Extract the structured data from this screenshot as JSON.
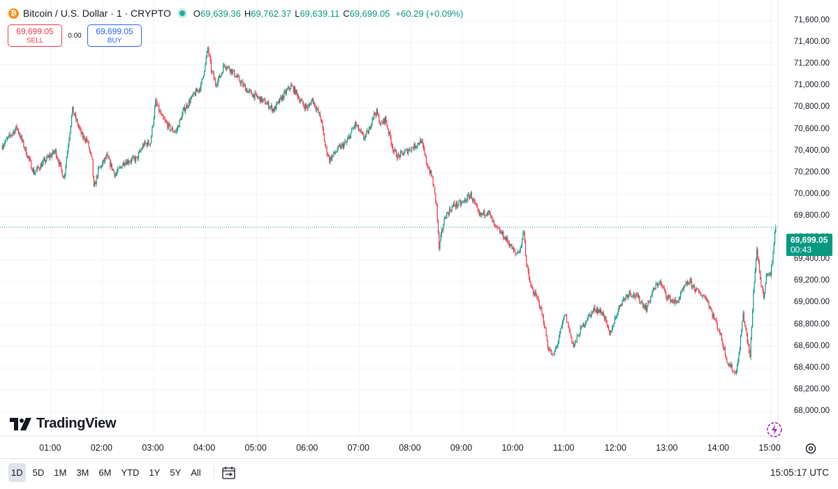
{
  "legend": {
    "symbol_title": "Bitcoin / U.S. Dollar · 1 · CRYPTO",
    "coin_icon": "bitcoin-icon",
    "open_key": "O",
    "open": "69,639.36",
    "high_key": "H",
    "high": "69,762.37",
    "low_key": "L",
    "low": "69,639.11",
    "close_key": "C",
    "close": "69,699.05",
    "change": "+60.29 (+0.09%)"
  },
  "trade": {
    "sell_price": "69,699.05",
    "sell_label": "SELL",
    "spread": "0.00",
    "buy_price": "69,699.05",
    "buy_label": "BUY"
  },
  "brand": "TradingView",
  "last_price": {
    "value": "69,699.05",
    "countdown": "00:43"
  },
  "ranges": [
    "1D",
    "5D",
    "1M",
    "3M",
    "6M",
    "YTD",
    "1Y",
    "5Y",
    "All"
  ],
  "active_range": "1D",
  "clock": "15:05:17 UTC",
  "colors": {
    "up": "#089981",
    "down": "#f23645",
    "accent": "#2962ff",
    "brand_coin": "#f7931a"
  },
  "chart_data": {
    "type": "candlestick",
    "y_tick_labels": [
      "71,600.00",
      "71,400.00",
      "71,200.00",
      "71,000.00",
      "70,800.00",
      "70,600.00",
      "70,400.00",
      "70,200.00",
      "70,000.00",
      "69,800.00",
      "69,600.00",
      "69,400.00",
      "69,200.00",
      "69,000.00",
      "68,800.00",
      "68,600.00",
      "68,400.00",
      "68,200.00",
      "68,000.00"
    ],
    "x_tick_labels": [
      "01:00",
      "02:00",
      "03:00",
      "04:00",
      "05:00",
      "06:00",
      "07:00",
      "08:00",
      "09:00",
      "10:00",
      "11:00",
      "12:00",
      "13:00",
      "14:00",
      "15:00"
    ],
    "ylim": [
      67980,
      71650
    ],
    "xlim": [
      "00:02",
      "15:07"
    ],
    "grid": true,
    "last_price": 69699.05,
    "path": [
      [
        "00:03",
        70450
      ],
      [
        "00:20",
        70620
      ],
      [
        "00:40",
        70200
      ],
      [
        "00:55",
        70330
      ],
      [
        "01:05",
        70400
      ],
      [
        "01:15",
        70150
      ],
      [
        "01:25",
        70780
      ],
      [
        "01:36",
        70540
      ],
      [
        "01:42",
        70500
      ],
      [
        "01:48",
        70300
      ],
      [
        "01:50",
        70050
      ],
      [
        "01:55",
        70220
      ],
      [
        "02:05",
        70350
      ],
      [
        "02:15",
        70180
      ],
      [
        "02:25",
        70300
      ],
      [
        "02:40",
        70330
      ],
      [
        "02:48",
        70460
      ],
      [
        "02:56",
        70480
      ],
      [
        "03:02",
        70850
      ],
      [
        "03:10",
        70700
      ],
      [
        "03:20",
        70600
      ],
      [
        "03:26",
        70580
      ],
      [
        "03:35",
        70780
      ],
      [
        "03:45",
        70900
      ],
      [
        "03:55",
        71000
      ],
      [
        "04:00",
        71200
      ],
      [
        "04:03",
        71350
      ],
      [
        "04:07",
        71150
      ],
      [
        "04:12",
        71020
      ],
      [
        "04:18",
        71100
      ],
      [
        "04:22",
        71200
      ],
      [
        "04:30",
        71150
      ],
      [
        "04:40",
        71050
      ],
      [
        "04:50",
        70950
      ],
      [
        "05:00",
        70900
      ],
      [
        "05:10",
        70850
      ],
      [
        "05:20",
        70780
      ],
      [
        "05:30",
        70900
      ],
      [
        "05:40",
        71000
      ],
      [
        "05:45",
        70950
      ],
      [
        "05:50",
        70880
      ],
      [
        "05:55",
        70820
      ],
      [
        "06:00",
        70800
      ],
      [
        "06:05",
        70880
      ],
      [
        "06:15",
        70700
      ],
      [
        "06:20",
        70450
      ],
      [
        "06:25",
        70320
      ],
      [
        "06:35",
        70420
      ],
      [
        "06:45",
        70480
      ],
      [
        "06:55",
        70650
      ],
      [
        "07:05",
        70520
      ],
      [
        "07:12",
        70600
      ],
      [
        "07:15",
        70720
      ],
      [
        "07:20",
        70760
      ],
      [
        "07:25",
        70640
      ],
      [
        "07:30",
        70700
      ],
      [
        "07:35",
        70550
      ],
      [
        "07:40",
        70400
      ],
      [
        "07:45",
        70350
      ],
      [
        "07:55",
        70400
      ],
      [
        "08:05",
        70450
      ],
      [
        "08:12",
        70500
      ],
      [
        "08:18",
        70300
      ],
      [
        "08:25",
        70150
      ],
      [
        "08:30",
        69900
      ],
      [
        "08:33",
        69500
      ],
      [
        "08:36",
        69650
      ],
      [
        "08:40",
        69800
      ],
      [
        "08:50",
        69900
      ],
      [
        "09:00",
        69920
      ],
      [
        "09:10",
        70000
      ],
      [
        "09:15",
        69900
      ],
      [
        "09:20",
        69800
      ],
      [
        "09:30",
        69850
      ],
      [
        "09:38",
        69700
      ],
      [
        "09:45",
        69650
      ],
      [
        "09:55",
        69550
      ],
      [
        "10:02",
        69450
      ],
      [
        "10:08",
        69500
      ],
      [
        "10:12",
        69680
      ],
      [
        "10:15",
        69350
      ],
      [
        "10:20",
        69150
      ],
      [
        "10:30",
        69000
      ],
      [
        "10:36",
        68800
      ],
      [
        "10:40",
        68600
      ],
      [
        "10:46",
        68500
      ],
      [
        "10:52",
        68650
      ],
      [
        "11:00",
        68900
      ],
      [
        "11:05",
        68750
      ],
      [
        "11:10",
        68600
      ],
      [
        "11:18",
        68750
      ],
      [
        "11:25",
        68850
      ],
      [
        "11:35",
        68950
      ],
      [
        "11:45",
        68900
      ],
      [
        "11:52",
        68700
      ],
      [
        "11:58",
        68850
      ],
      [
        "12:05",
        69000
      ],
      [
        "12:15",
        69100
      ],
      [
        "12:25",
        69050
      ],
      [
        "12:35",
        68950
      ],
      [
        "12:42",
        69100
      ],
      [
        "12:50",
        69200
      ],
      [
        "13:00",
        69050
      ],
      [
        "13:10",
        69000
      ],
      [
        "13:20",
        69150
      ],
      [
        "13:25",
        69200
      ],
      [
        "13:35",
        69100
      ],
      [
        "13:45",
        69050
      ],
      [
        "13:52",
        68900
      ],
      [
        "14:00",
        68750
      ],
      [
        "14:05",
        68600
      ],
      [
        "14:10",
        68450
      ],
      [
        "14:15",
        68400
      ],
      [
        "14:18",
        68350
      ],
      [
        "14:22",
        68450
      ],
      [
        "14:28",
        68900
      ],
      [
        "14:32",
        68700
      ],
      [
        "14:36",
        68500
      ],
      [
        "14:40",
        69100
      ],
      [
        "14:44",
        69500
      ],
      [
        "14:48",
        69200
      ],
      [
        "14:52",
        69050
      ],
      [
        "14:56",
        69300
      ],
      [
        "15:00",
        69250
      ],
      [
        "15:04",
        69550
      ],
      [
        "15:06",
        69699.05
      ]
    ]
  }
}
